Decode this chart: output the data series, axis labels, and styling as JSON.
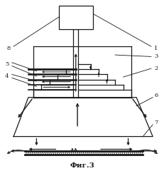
{
  "title": "Фиг.3",
  "bg_color": "#ffffff",
  "line_color": "#1a1a1a",
  "fig_width": 2.32,
  "fig_height": 2.4,
  "dpi": 100
}
